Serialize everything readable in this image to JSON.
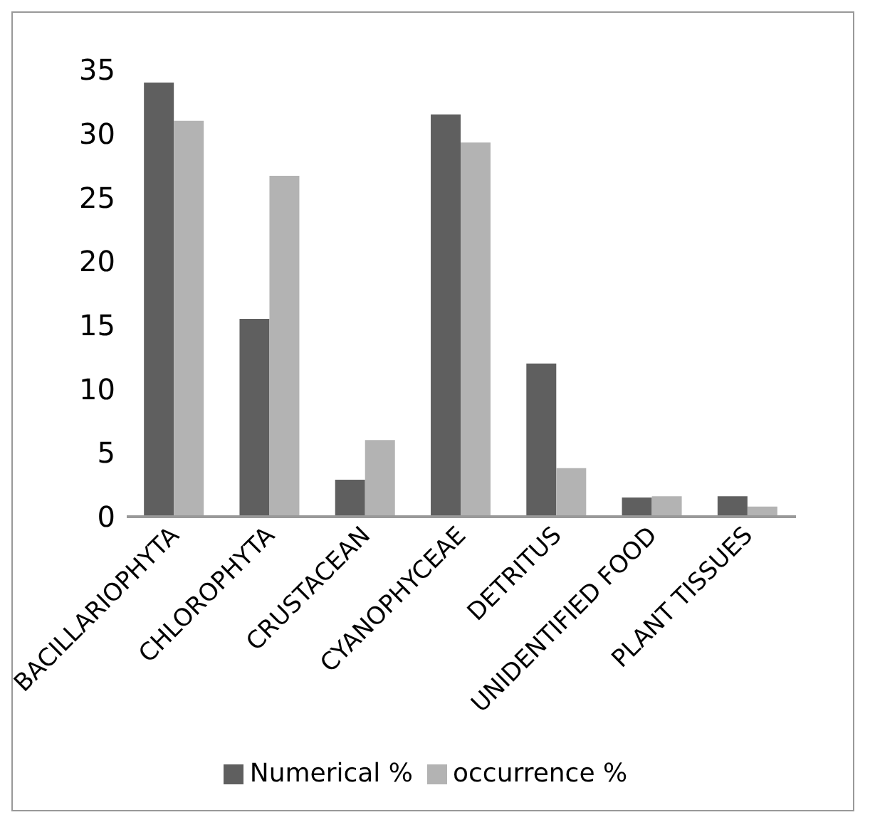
{
  "chart_data": {
    "type": "bar",
    "categories": [
      "BACILLARIOPHYTA",
      "CHLOROPHYTA",
      "CRUSTACEAN",
      "CYANOPHYCEAE",
      "DETRITUS",
      "UNIDENTIFIED FOOD",
      "PLANT TISSUES"
    ],
    "series": [
      {
        "name": "Numerical %",
        "color": "#5f5f5f",
        "values": [
          34,
          15.5,
          2.9,
          31.5,
          12,
          1.5,
          1.6
        ]
      },
      {
        "name": "occurrence %",
        "color": "#b3b3b3",
        "values": [
          31,
          26.7,
          6,
          29.3,
          3.8,
          1.6,
          0.8
        ]
      }
    ],
    "ylim": [
      0,
      35
    ],
    "yticks": [
      0,
      5,
      10,
      15,
      20,
      25,
      30,
      35
    ],
    "grid": false,
    "legend": "bottom"
  }
}
